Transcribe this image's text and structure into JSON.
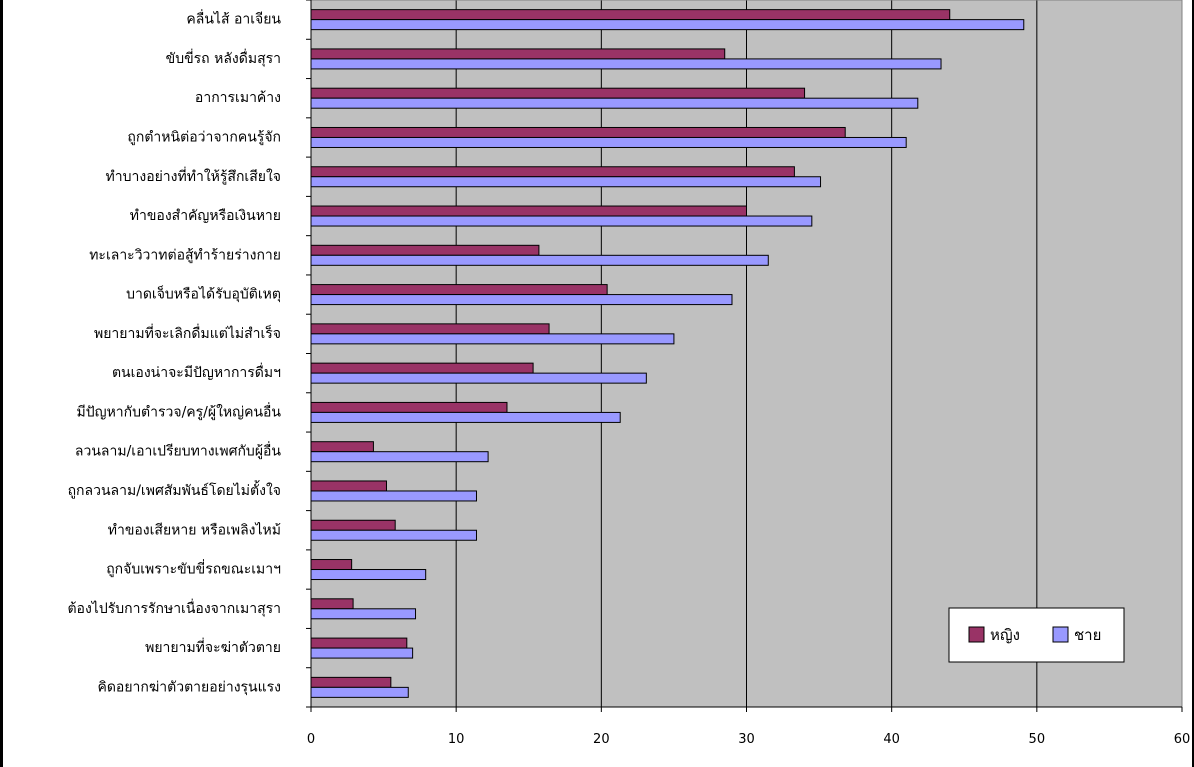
{
  "chart_data": {
    "type": "bar",
    "orientation": "horizontal",
    "categories": [
      "คลื่นไส้ อาเจียน",
      "ขับขี่รถ หลังดื่มสุรา",
      "อาการเมาค้าง",
      "ถูกตำหนิต่อว่าจากคนรู้จัก",
      "ทำบางอย่างที่ทำให้รู้สึกเสียใจ",
      "ทำของสำคัญหรือเงินหาย",
      "ทะเลาะวิวาทต่อสู้ทำร้ายร่างกาย",
      "บาดเจ็บหรือได้รับอุบัติเหตุ",
      "พยายามที่จะเลิกดื่มแต่ไม่สำเร็จ",
      "ตนเองน่าจะมีปัญหาการดื่มฯ",
      "มีปัญหากับตำรวจ/ครู/ผู้ใหญ่คนอื่น",
      "ลวนลาม/เอาเปรียบทางเพศกับผู้อื่น",
      "ถูกลวนลาม/เพศสัมพันธ์โดยไม่ตั้งใจ",
      "ทำของเสียหาย หรือเพลิงไหม้",
      "ถูกจับเพราะขับขี่รถขณะเมาฯ",
      "ต้องไปรับการรักษาเนื่องจากเมาสุรา",
      "พยายามที่จะฆ่าตัวตาย",
      "คิดอยากฆ่าตัวตายอย่างรุนแรง"
    ],
    "series": [
      {
        "name": "หญิง",
        "color": "#993366",
        "values": [
          44,
          28.5,
          34,
          36.8,
          33.3,
          30,
          15.7,
          20.4,
          16.4,
          15.3,
          13.5,
          4.3,
          5.2,
          5.8,
          2.8,
          2.9,
          6.6,
          5.5
        ]
      },
      {
        "name": "ชาย",
        "color": "#9999ff",
        "values": [
          49.1,
          43.4,
          41.8,
          41,
          35.1,
          34.5,
          31.5,
          29,
          25,
          23.1,
          21.3,
          12.2,
          11.4,
          11.4,
          7.9,
          7.2,
          7,
          6.7
        ]
      }
    ],
    "xlim": [
      0,
      60
    ],
    "xticks": [
      "0",
      "10",
      "20",
      "30",
      "40",
      "50",
      "60"
    ],
    "grid": true,
    "legend_position": "bottom-right",
    "plot_background": "#c0c0c0"
  }
}
